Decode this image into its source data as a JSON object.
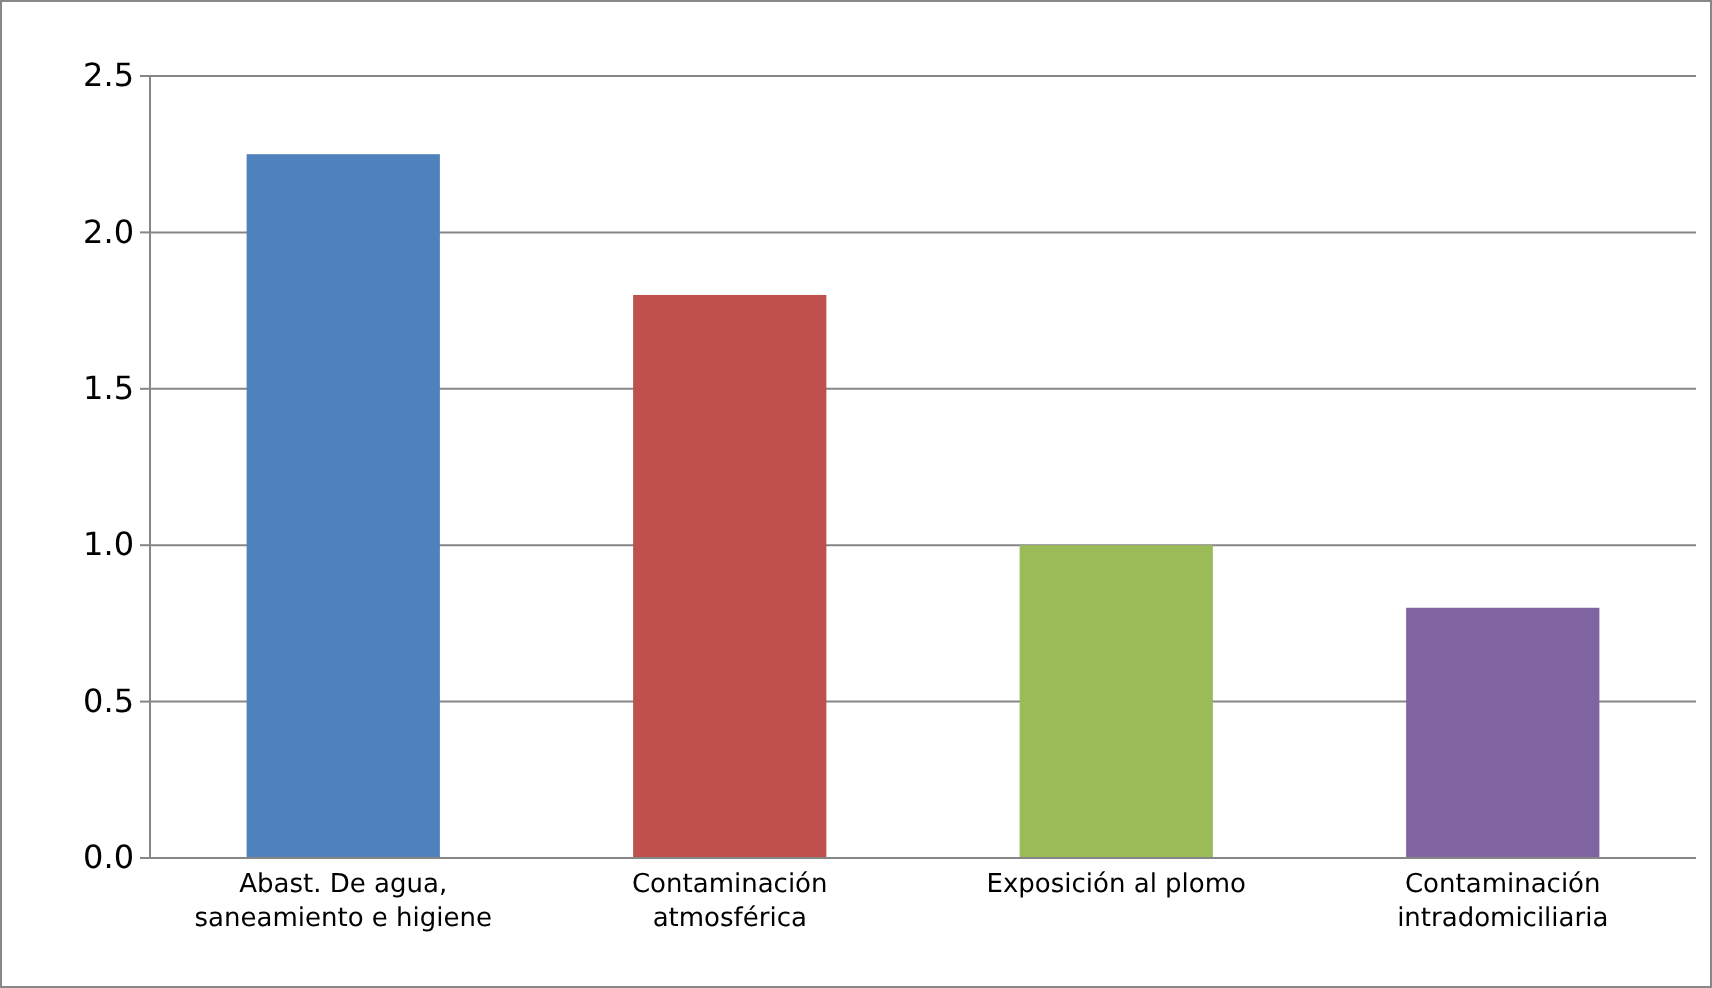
{
  "chart_data": {
    "type": "bar",
    "categories": [
      "Abast. De agua, saneamiento e higiene",
      "Contaminación atmosférica",
      "Exposición al plomo",
      "Contaminación intradomiciliaria"
    ],
    "values": [
      2.25,
      1.8,
      1.0,
      0.8
    ],
    "colors": [
      "#4f81bd",
      "#c0504d",
      "#9bbb59",
      "#8064a2"
    ],
    "ylim": [
      0,
      2.5
    ],
    "yticks": [
      {
        "value": 0,
        "label": "0.0"
      },
      {
        "value": 0.5,
        "label": "0.5"
      },
      {
        "value": 1,
        "label": "1.0"
      },
      {
        "value": 1.5,
        "label": "1.5"
      },
      {
        "value": 2,
        "label": "2.0"
      },
      {
        "value": 2.5,
        "label": "2.5"
      }
    ],
    "grid": "y"
  }
}
